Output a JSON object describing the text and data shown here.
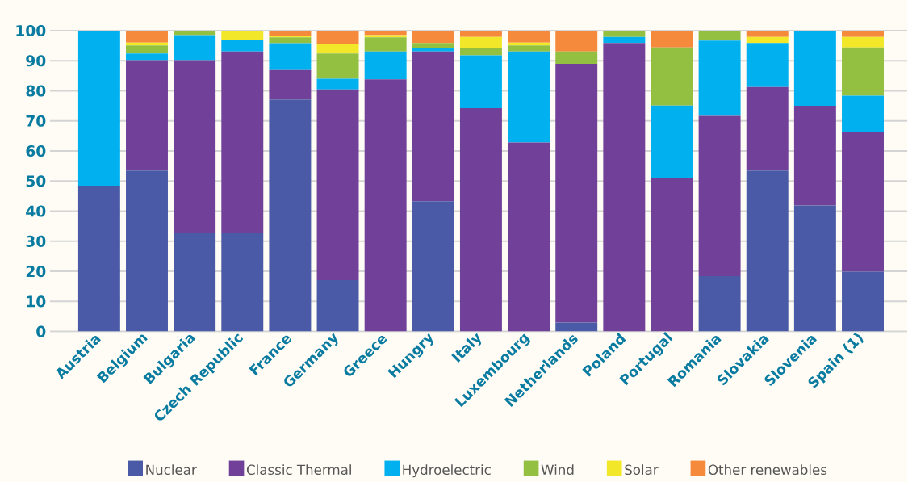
{
  "chart_data": {
    "type": "bar",
    "stacked": true,
    "categories": [
      "Austria",
      "Belgium",
      "Bulgaria",
      "Czech Republic",
      "France",
      "Germany",
      "Greece",
      "Hungry",
      "Italy",
      "Luxembourg",
      "Netherlands",
      "Poland",
      "Portugal",
      "Romania",
      "Slovakia",
      "Slovenia",
      "Spain (1)"
    ],
    "series": [
      {
        "name": "Nuclear",
        "color": "#4a5aa6",
        "values": [
          48.5,
          53.5,
          32.9,
          32.9,
          77.1,
          17.1,
          0,
          43.3,
          0,
          0,
          3.0,
          0,
          0,
          18.4,
          53.5,
          41.9,
          19.9
        ]
      },
      {
        "name": "Classic Thermal",
        "color": "#71419a",
        "values": [
          0,
          36.7,
          57.3,
          60.2,
          9.8,
          63.4,
          83.8,
          49.8,
          74.2,
          62.8,
          86.0,
          95.9,
          51.0,
          53.3,
          27.8,
          33.1,
          46.3
        ]
      },
      {
        "name": "Hydroelectric",
        "color": "#00b0ef",
        "values": [
          51.5,
          2.2,
          8.3,
          3.9,
          8.9,
          3.5,
          9.3,
          1.1,
          17.6,
          30.3,
          0,
          2.0,
          24.1,
          25.0,
          14.6,
          25.0,
          12.2
        ]
      },
      {
        "name": "Wind",
        "color": "#94c042",
        "values": [
          0,
          2.7,
          1.5,
          0,
          2.0,
          8.4,
          4.7,
          1.7,
          2.4,
          2.0,
          4.1,
          2.1,
          19.3,
          3.3,
          0,
          0,
          16.0
        ]
      },
      {
        "name": "Solar",
        "color": "#f2e829",
        "values": [
          0,
          0.9,
          0,
          3.0,
          0.6,
          3.1,
          0.7,
          0,
          3.7,
          0.9,
          0,
          0,
          0,
          0,
          2.0,
          0,
          3.5
        ]
      },
      {
        "name": "Other renewables",
        "color": "#f58a3c",
        "values": [
          0,
          4.0,
          0,
          0,
          1.6,
          4.5,
          1.5,
          4.1,
          2.1,
          4.0,
          6.9,
          0,
          5.6,
          0,
          2.1,
          0,
          2.1
        ]
      }
    ],
    "ylim": [
      0,
      100
    ],
    "yticks": [
      0,
      10,
      20,
      30,
      40,
      50,
      60,
      70,
      80,
      90,
      100
    ],
    "grid": "y",
    "legend": "bottom"
  }
}
